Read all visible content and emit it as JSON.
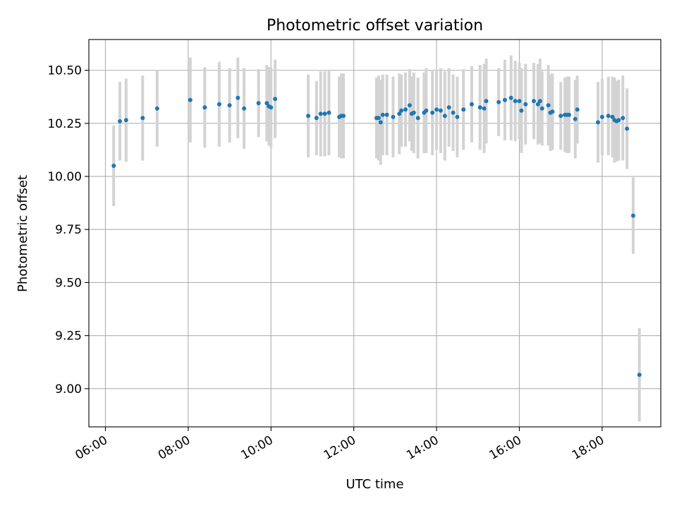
{
  "chart_data": {
    "type": "scatter",
    "title": "Photometric offset variation",
    "xlabel": "UTC time",
    "ylabel": "Photometric offset",
    "x_axis_kind": "time",
    "xlim": [
      "05:36",
      "19:25"
    ],
    "ylim": [
      8.82,
      10.645
    ],
    "x_ticks": [
      "06:00",
      "08:00",
      "10:00",
      "12:00",
      "14:00",
      "16:00",
      "18:00"
    ],
    "y_ticks": [
      "9.00",
      "9.25",
      "9.50",
      "9.75",
      "10.00",
      "10.25",
      "10.50"
    ],
    "x_tick_rotation_deg": 30,
    "grid": true,
    "legend": "none",
    "colors": {
      "marker": "#1f77b4",
      "errorbar": "#d3d3d3",
      "grid": "#b0b0b0"
    },
    "series": [
      {
        "marker": "point",
        "x": [
          "06:12",
          "06:21",
          "06:30",
          "06:54",
          "07:15",
          "08:03",
          "08:24",
          "08:45",
          "09:00",
          "09:12",
          "09:21",
          "09:42",
          "09:54",
          "09:57",
          "10:00",
          "10:06",
          "10:54",
          "11:06",
          "11:12",
          "11:18",
          "11:24",
          "11:39",
          "11:42",
          "11:45",
          "12:33",
          "12:36",
          "12:39",
          "12:42",
          "12:48",
          "12:57",
          "13:06",
          "13:09",
          "13:15",
          "13:21",
          "13:24",
          "13:27",
          "13:33",
          "13:42",
          "13:45",
          "13:54",
          "14:00",
          "14:06",
          "14:12",
          "14:18",
          "14:24",
          "14:30",
          "14:39",
          "14:51",
          "15:03",
          "15:09",
          "15:12",
          "15:30",
          "15:39",
          "15:48",
          "15:54",
          "16:00",
          "16:03",
          "16:09",
          "16:21",
          "16:27",
          "16:30",
          "16:33",
          "16:42",
          "16:45",
          "16:48",
          "17:00",
          "17:06",
          "17:09",
          "17:12",
          "17:21",
          "17:24",
          "17:54",
          "18:00",
          "18:09",
          "18:15",
          "18:18",
          "18:21",
          "18:24",
          "18:30",
          "18:36",
          "18:45",
          "18:54"
        ],
        "y": [
          10.05,
          10.26,
          10.265,
          10.275,
          10.32,
          10.36,
          10.325,
          10.34,
          10.335,
          10.37,
          10.32,
          10.345,
          10.345,
          10.33,
          10.325,
          10.365,
          10.285,
          10.275,
          10.295,
          10.295,
          10.3,
          10.28,
          10.285,
          10.285,
          10.275,
          10.275,
          10.255,
          10.29,
          10.29,
          10.28,
          10.295,
          10.31,
          10.315,
          10.335,
          10.295,
          10.3,
          10.275,
          10.3,
          10.31,
          10.3,
          10.315,
          10.31,
          10.285,
          10.325,
          10.3,
          10.28,
          10.315,
          10.34,
          10.325,
          10.32,
          10.355,
          10.35,
          10.36,
          10.37,
          10.355,
          10.355,
          10.31,
          10.34,
          10.355,
          10.34,
          10.355,
          10.32,
          10.335,
          10.3,
          10.305,
          10.285,
          10.29,
          10.29,
          10.29,
          10.27,
          10.315,
          10.255,
          10.28,
          10.285,
          10.28,
          10.265,
          10.26,
          10.265,
          10.275,
          10.225,
          9.815,
          9.065
        ],
        "yerr": [
          0.19,
          0.185,
          0.195,
          0.2,
          0.18,
          0.2,
          0.19,
          0.2,
          0.175,
          0.19,
          0.19,
          0.16,
          0.18,
          0.185,
          0.19,
          0.185,
          0.195,
          0.175,
          0.2,
          0.2,
          0.2,
          0.19,
          0.2,
          0.2,
          0.19,
          0.2,
          0.2,
          0.19,
          0.19,
          0.19,
          0.19,
          0.17,
          0.175,
          0.17,
          0.175,
          0.19,
          0.19,
          0.19,
          0.2,
          0.2,
          0.19,
          0.2,
          0.21,
          0.185,
          0.18,
          0.19,
          0.19,
          0.18,
          0.2,
          0.21,
          0.2,
          0.16,
          0.19,
          0.2,
          0.19,
          0.18,
          0.2,
          0.19,
          0.18,
          0.19,
          0.2,
          0.175,
          0.19,
          0.18,
          0.18,
          0.16,
          0.175,
          0.18,
          0.18,
          0.185,
          0.16,
          0.19,
          0.18,
          0.185,
          0.19,
          0.2,
          0.19,
          0.19,
          0.2,
          0.19,
          0.18,
          0.22
        ]
      }
    ]
  }
}
